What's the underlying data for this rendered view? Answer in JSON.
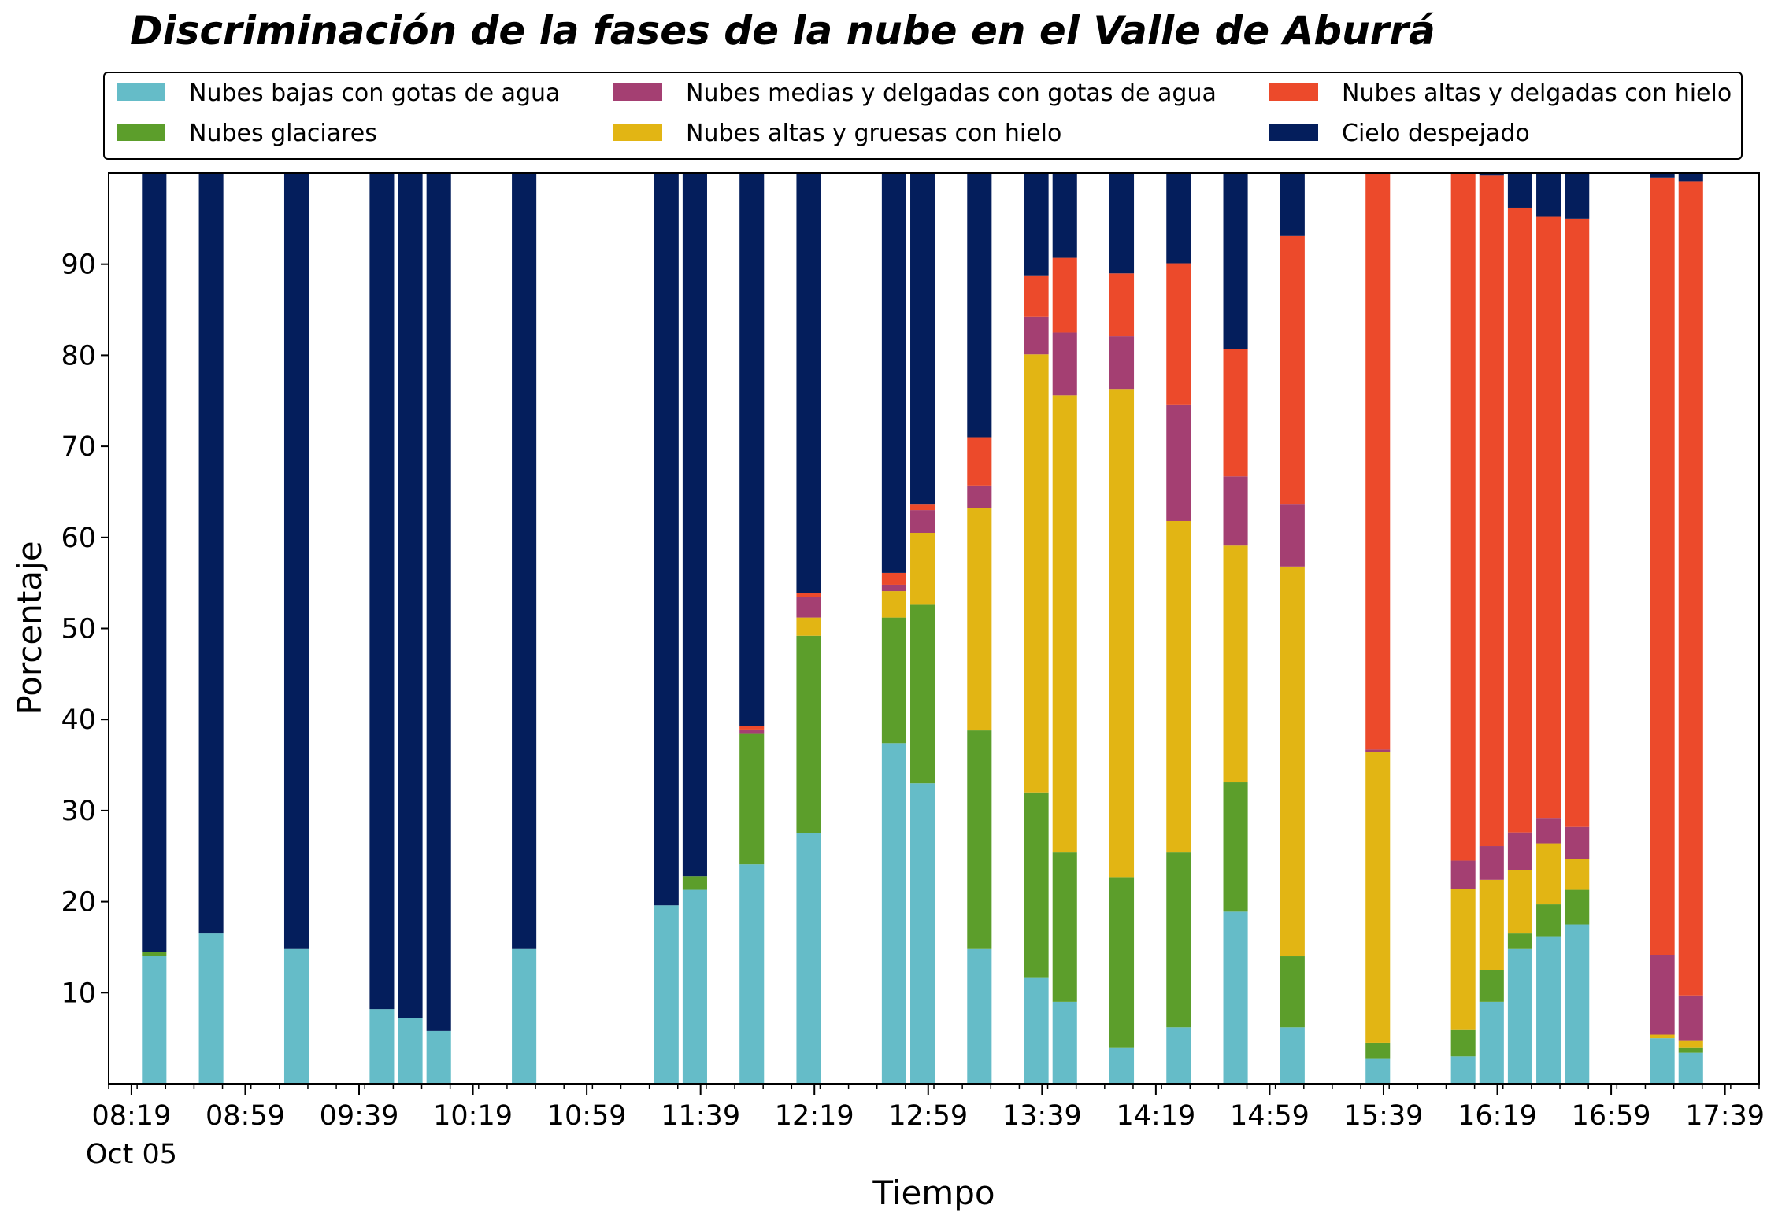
{
  "chart_data": {
    "type": "bar",
    "stacked": true,
    "title": "Discriminación de la fases de la nube en el Valle de Aburrá",
    "xlabel": "Tiempo",
    "ylabel": "Porcentaje",
    "ylim": [
      0,
      100
    ],
    "yticks": [
      10,
      20,
      30,
      40,
      50,
      60,
      70,
      80,
      90
    ],
    "xlim": [
      "08:11",
      "17:51"
    ],
    "xtick_labels": [
      "08:19",
      "08:59",
      "09:39",
      "10:19",
      "10:59",
      "11:39",
      "12:19",
      "12:59",
      "13:39",
      "14:19",
      "14:59",
      "15:39",
      "16:19",
      "16:59",
      "17:39"
    ],
    "xtick_sublabel": "Oct 05",
    "legend_position": "top (above plot, 3 columns)",
    "grid": false,
    "categories": [
      "08:27",
      "08:47",
      "09:17",
      "09:47",
      "09:57",
      "10:07",
      "10:37",
      "11:27",
      "11:37",
      "11:57",
      "12:17",
      "12:47",
      "12:57",
      "13:17",
      "13:37",
      "13:47",
      "14:07",
      "14:27",
      "14:47",
      "15:07",
      "15:37",
      "16:07",
      "16:17",
      "16:27",
      "16:37",
      "16:47",
      "17:17",
      "17:27"
    ],
    "series": [
      {
        "name": "Nubes bajas con gotas de agua",
        "color": "#65bcc8",
        "values": [
          14,
          16.5,
          14.8,
          8.2,
          7.2,
          5.8,
          14.8,
          19.6,
          21.3,
          24.1,
          27.5,
          37.4,
          33,
          14.8,
          11.7,
          9,
          4,
          6.2,
          18.9,
          6.2,
          2.8,
          3,
          9,
          14.8,
          16.2,
          17.5,
          5,
          3.4
        ]
      },
      {
        "name": "Nubes glaciares",
        "color": "#5c9e2b",
        "values": [
          0.5,
          0,
          0,
          0,
          0,
          0,
          0,
          0,
          1.5,
          14.4,
          21.7,
          13.8,
          19.6,
          24,
          20.3,
          16.4,
          18.7,
          19.2,
          14.2,
          7.8,
          1.7,
          2.9,
          3.5,
          1.7,
          3.5,
          3.8,
          0,
          0.6
        ]
      },
      {
        "name": "Nubes altas y gruesas con hielo",
        "color": "#e2b514",
        "values": [
          0,
          0,
          0,
          0,
          0,
          0,
          0,
          0,
          0,
          0,
          2,
          2.9,
          7.9,
          24.4,
          48.1,
          50.2,
          53.6,
          36.4,
          26,
          42.8,
          31.9,
          15.5,
          9.9,
          7,
          6.7,
          3.4,
          0.4,
          0.7
        ]
      },
      {
        "name": "Nubes medias y delgadas con gotas de agua",
        "color": "#a43f72",
        "values": [
          0,
          0,
          0,
          0,
          0,
          0,
          0,
          0,
          0,
          0.4,
          2.3,
          0.7,
          2.5,
          2.5,
          4.1,
          6.9,
          5.8,
          12.8,
          7.6,
          6.8,
          0.3,
          3.1,
          3.7,
          4.1,
          2.8,
          3.5,
          8.7,
          5
        ]
      },
      {
        "name": "Nubes altas y delgadas con hielo",
        "color": "#ec4a2b",
        "values": [
          0,
          0,
          0,
          0,
          0,
          0,
          0,
          0,
          0,
          0.4,
          0.4,
          1.3,
          0.6,
          5.3,
          4.5,
          8.2,
          6.9,
          15.5,
          14,
          29.5,
          63.3,
          75.5,
          73.7,
          68.6,
          66,
          66.8,
          85.4,
          89.4
        ]
      },
      {
        "name": "Cielo despejado",
        "color": "#041e5c",
        "values": [
          85.5,
          83.5,
          85.2,
          91.8,
          92.8,
          94.2,
          85.2,
          80.4,
          77.2,
          60.7,
          46.1,
          43.9,
          36.4,
          29,
          11.3,
          9.3,
          11,
          9.9,
          19.3,
          6.9,
          0,
          0,
          0.7,
          3.8,
          4.8,
          5,
          0.5,
          0.9
        ]
      }
    ]
  }
}
